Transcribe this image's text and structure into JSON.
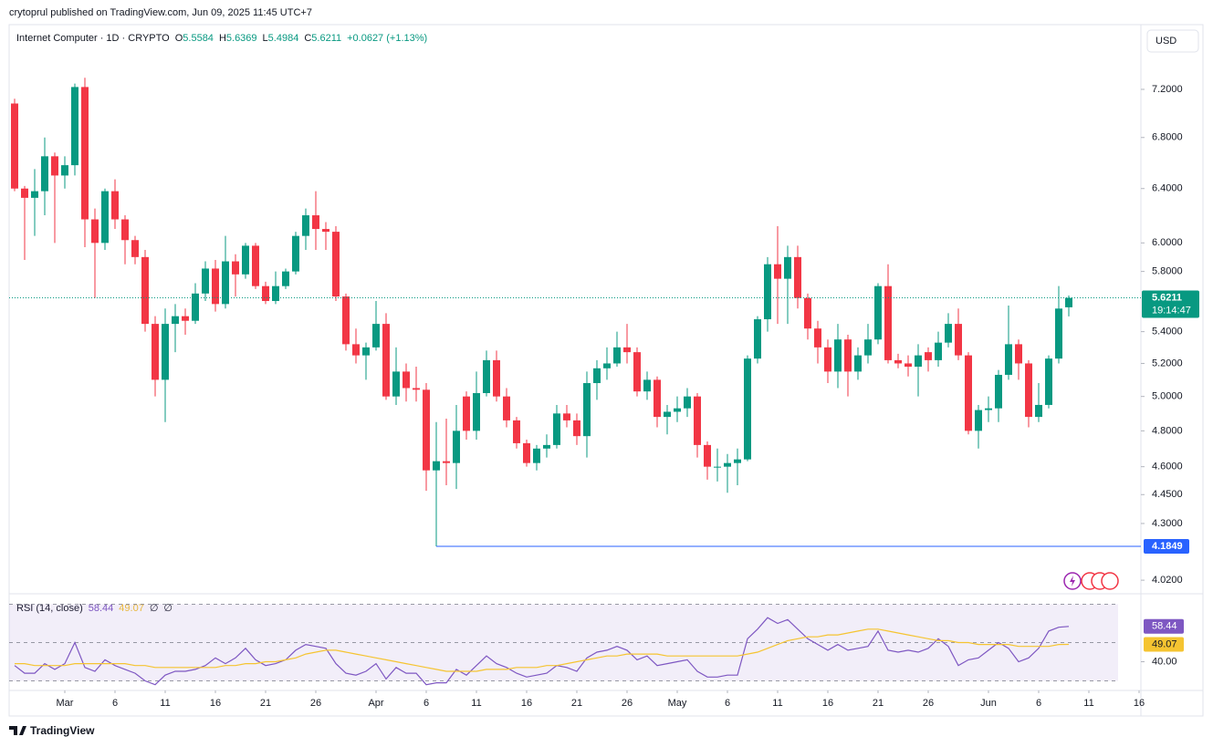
{
  "header": {
    "published": "crytoprul published on TradingView.com, Jun 09, 2025 11:45 UTC+7"
  },
  "footer": {
    "brand": "TradingView"
  },
  "chart_data": {
    "type": "candlestick",
    "title": "Internet Computer · 1D · CRYPTO",
    "ohlc_labels": [
      "O",
      "H",
      "L",
      "C"
    ],
    "change_label": "+0.0627 (+1.13%)",
    "currency": "USD",
    "countdown": "19:14:47",
    "up_color": "#089981",
    "down_color": "#f23645",
    "low_line_color": "#2962ff",
    "log_scale": true,
    "dates": [
      "2025-02-24",
      "2025-02-25",
      "2025-02-26",
      "2025-02-27",
      "2025-02-28",
      "2025-03-01",
      "2025-03-02",
      "2025-03-03",
      "2025-03-04",
      "2025-03-05",
      "2025-03-06",
      "2025-03-07",
      "2025-03-08",
      "2025-03-09",
      "2025-03-10",
      "2025-03-11",
      "2025-03-12",
      "2025-03-13",
      "2025-03-14",
      "2025-03-15",
      "2025-03-16",
      "2025-03-17",
      "2025-03-18",
      "2025-03-19",
      "2025-03-20",
      "2025-03-21",
      "2025-03-22",
      "2025-03-23",
      "2025-03-24",
      "2025-03-25",
      "2025-03-26",
      "2025-03-27",
      "2025-03-28",
      "2025-03-29",
      "2025-03-30",
      "2025-03-31",
      "2025-04-01",
      "2025-04-02",
      "2025-04-03",
      "2025-04-04",
      "2025-04-05",
      "2025-04-06",
      "2025-04-07",
      "2025-04-08",
      "2025-04-09",
      "2025-04-10",
      "2025-04-11",
      "2025-04-12",
      "2025-04-13",
      "2025-04-14",
      "2025-04-15",
      "2025-04-16",
      "2025-04-17",
      "2025-04-18",
      "2025-04-19",
      "2025-04-20",
      "2025-04-21",
      "2025-04-22",
      "2025-04-23",
      "2025-04-24",
      "2025-04-25",
      "2025-04-26",
      "2025-04-27",
      "2025-04-28",
      "2025-04-29",
      "2025-04-30",
      "2025-05-01",
      "2025-05-02",
      "2025-05-03",
      "2025-05-04",
      "2025-05-05",
      "2025-05-06",
      "2025-05-07",
      "2025-05-08",
      "2025-05-09",
      "2025-05-10",
      "2025-05-11",
      "2025-05-12",
      "2025-05-13",
      "2025-05-14",
      "2025-05-15",
      "2025-05-16",
      "2025-05-17",
      "2025-05-18",
      "2025-05-19",
      "2025-05-20",
      "2025-05-21",
      "2025-05-22",
      "2025-05-23",
      "2025-05-24",
      "2025-05-25",
      "2025-05-26",
      "2025-05-27",
      "2025-05-28",
      "2025-05-29",
      "2025-05-30",
      "2025-05-31",
      "2025-06-01",
      "2025-06-02",
      "2025-06-03",
      "2025-06-04",
      "2025-06-05",
      "2025-06-06",
      "2025-06-07",
      "2025-06-08",
      "2025-06-09"
    ],
    "open": [
      7.08,
      6.4,
      6.33,
      6.38,
      6.65,
      6.5,
      6.58,
      7.22,
      6.17,
      6.0,
      6.38,
      6.17,
      6.02,
      5.9,
      5.45,
      5.1,
      5.45,
      5.5,
      5.47,
      5.65,
      5.82,
      5.58,
      5.87,
      5.78,
      5.98,
      5.7,
      5.6,
      5.7,
      5.8,
      6.05,
      6.2,
      6.1,
      6.08,
      5.63,
      5.32,
      5.25,
      5.3,
      5.45,
      5.0,
      5.15,
      5.05,
      5.04,
      4.58,
      4.63,
      4.62,
      5.0,
      4.8,
      5.02,
      5.22,
      5.0,
      4.86,
      4.73,
      4.62,
      4.7,
      4.72,
      4.9,
      4.86,
      4.77,
      5.08,
      5.17,
      5.2,
      5.3,
      5.27,
      5.03,
      5.1,
      4.88,
      4.91,
      4.93,
      5.0,
      4.72,
      4.6,
      4.6,
      4.62,
      4.64,
      5.23,
      5.48,
      5.85,
      5.75,
      5.9,
      5.62,
      5.42,
      5.3,
      5.15,
      5.35,
      5.15,
      5.25,
      5.35,
      5.7,
      5.22,
      5.2,
      5.18,
      5.27,
      5.22,
      5.33,
      5.45,
      5.25,
      4.8,
      4.92,
      4.93,
      5.13,
      5.32,
      5.2,
      4.88,
      4.95,
      5.23,
      5.5584
    ],
    "high": [
      7.12,
      6.42,
      6.55,
      6.8,
      6.68,
      6.65,
      7.25,
      7.3,
      6.25,
      6.4,
      6.47,
      6.2,
      6.05,
      5.95,
      5.5,
      5.55,
      5.58,
      5.55,
      5.72,
      5.87,
      5.88,
      6.05,
      5.92,
      6.0,
      6.0,
      5.73,
      5.8,
      5.82,
      6.08,
      6.25,
      6.38,
      6.15,
      6.12,
      5.65,
      5.42,
      5.33,
      5.6,
      5.52,
      5.3,
      5.2,
      5.18,
      5.08,
      4.85,
      4.87,
      4.95,
      5.03,
      5.15,
      5.28,
      5.28,
      5.05,
      4.88,
      4.75,
      4.72,
      4.78,
      4.95,
      4.95,
      4.9,
      5.15,
      5.22,
      5.3,
      5.4,
      5.45,
      5.3,
      5.15,
      5.12,
      4.95,
      5.0,
      5.05,
      5.02,
      4.74,
      4.7,
      4.67,
      4.7,
      5.25,
      5.5,
      5.9,
      6.12,
      5.98,
      5.98,
      5.65,
      5.47,
      5.35,
      5.45,
      5.38,
      5.3,
      5.45,
      5.72,
      5.85,
      5.26,
      5.25,
      5.32,
      5.3,
      5.4,
      5.52,
      5.55,
      5.27,
      4.95,
      5.0,
      5.16,
      5.57,
      5.35,
      5.22,
      5.08,
      5.25,
      5.7,
      5.6369
    ],
    "low": [
      6.38,
      5.88,
      6.05,
      6.2,
      6.0,
      6.4,
      6.5,
      5.97,
      5.62,
      5.95,
      6.1,
      5.85,
      5.85,
      5.4,
      5.0,
      4.85,
      5.27,
      5.38,
      5.45,
      5.6,
      5.53,
      5.55,
      5.63,
      5.75,
      5.68,
      5.58,
      5.58,
      5.68,
      5.78,
      5.95,
      5.95,
      5.95,
      5.6,
      5.28,
      5.2,
      5.1,
      5.28,
      4.98,
      4.95,
      4.97,
      4.97,
      4.47,
      4.1849,
      4.5,
      4.48,
      4.75,
      4.75,
      5.0,
      4.97,
      4.82,
      4.7,
      4.6,
      4.58,
      4.65,
      4.7,
      4.82,
      4.72,
      4.65,
      4.98,
      5.1,
      5.18,
      5.2,
      5.0,
      4.98,
      4.82,
      4.78,
      4.85,
      4.88,
      4.65,
      4.53,
      4.52,
      4.46,
      4.5,
      4.63,
      5.2,
      5.4,
      5.45,
      5.45,
      5.55,
      5.35,
      5.2,
      5.08,
      5.05,
      5.0,
      5.1,
      5.2,
      5.32,
      5.2,
      5.17,
      5.12,
      5.0,
      5.15,
      5.18,
      5.3,
      5.22,
      4.78,
      4.7,
      4.85,
      4.85,
      5.1,
      5.1,
      4.82,
      4.85,
      4.93,
      5.2,
      5.4984
    ],
    "close": [
      6.4,
      6.33,
      6.38,
      6.65,
      6.5,
      6.58,
      7.22,
      6.17,
      6.0,
      6.38,
      6.17,
      6.02,
      5.9,
      5.45,
      5.1,
      5.45,
      5.5,
      5.47,
      5.65,
      5.82,
      5.58,
      5.87,
      5.78,
      5.98,
      5.7,
      5.6,
      5.7,
      5.8,
      6.05,
      6.2,
      6.1,
      6.08,
      5.63,
      5.32,
      5.25,
      5.3,
      5.45,
      5.0,
      5.15,
      5.05,
      5.04,
      4.58,
      4.63,
      4.62,
      4.8,
      4.8,
      5.02,
      5.22,
      5.0,
      4.86,
      4.73,
      4.62,
      4.7,
      4.72,
      4.9,
      4.86,
      4.77,
      5.08,
      5.17,
      5.2,
      5.3,
      5.27,
      5.03,
      5.1,
      4.88,
      4.91,
      4.93,
      5.0,
      4.72,
      4.6,
      4.6,
      4.62,
      4.64,
      5.23,
      5.48,
      5.85,
      5.75,
      5.9,
      5.62,
      5.42,
      5.3,
      5.15,
      5.35,
      5.15,
      5.25,
      5.35,
      5.7,
      5.22,
      5.2,
      5.18,
      5.25,
      5.22,
      5.33,
      5.45,
      5.25,
      4.8,
      4.92,
      4.93,
      5.13,
      5.32,
      5.2,
      4.88,
      4.95,
      5.23,
      5.55,
      5.6211
    ],
    "ylim": [
      3.96,
      7.75
    ],
    "yticks": [
      {
        "value": 7.2,
        "label": "7.2000"
      },
      {
        "value": 6.8,
        "label": "6.8000"
      },
      {
        "value": 6.4,
        "label": "6.4000"
      },
      {
        "value": 6.0,
        "label": "6.0000"
      },
      {
        "value": 5.8,
        "label": "5.8000"
      },
      {
        "value": 5.4,
        "label": "5.4000"
      },
      {
        "value": 5.2,
        "label": "5.2000"
      },
      {
        "value": 5.0,
        "label": "5.0000"
      },
      {
        "value": 4.8,
        "label": "4.8000"
      },
      {
        "value": 4.6,
        "label": "4.6000"
      },
      {
        "value": 4.45,
        "label": "4.4500"
      },
      {
        "value": 4.3,
        "label": "4.3000"
      },
      {
        "value": 4.02,
        "label": "4.0200"
      }
    ],
    "xticks": [
      {
        "value": "2025-03-01",
        "label": "Mar"
      },
      {
        "value": "2025-03-06",
        "label": "6"
      },
      {
        "value": "2025-03-11",
        "label": "11"
      },
      {
        "value": "2025-03-16",
        "label": "16"
      },
      {
        "value": "2025-03-21",
        "label": "21"
      },
      {
        "value": "2025-03-26",
        "label": "26"
      },
      {
        "value": "2025-04-01",
        "label": "Apr"
      },
      {
        "value": "2025-04-06",
        "label": "6"
      },
      {
        "value": "2025-04-11",
        "label": "11"
      },
      {
        "value": "2025-04-16",
        "label": "16"
      },
      {
        "value": "2025-04-21",
        "label": "21"
      },
      {
        "value": "2025-04-26",
        "label": "26"
      },
      {
        "value": "2025-05-01",
        "label": "May"
      },
      {
        "value": "2025-05-06",
        "label": "6"
      },
      {
        "value": "2025-05-11",
        "label": "11"
      },
      {
        "value": "2025-05-16",
        "label": "16"
      },
      {
        "value": "2025-05-21",
        "label": "21"
      },
      {
        "value": "2025-05-26",
        "label": "26"
      },
      {
        "value": "2025-06-01",
        "label": "Jun"
      },
      {
        "value": "2025-06-06",
        "label": "6"
      },
      {
        "value": "2025-06-11",
        "label": "11"
      },
      {
        "value": "2025-06-16",
        "label": "16"
      }
    ],
    "indicator": {
      "type": "line",
      "title": "RSI (14, close)",
      "extra_labels": [
        "∅",
        "∅"
      ],
      "ylim": [
        25,
        75
      ],
      "yticks": [
        {
          "value": 40,
          "label": "40.00"
        }
      ],
      "levels": [
        70,
        50,
        30
      ],
      "band_color": "#7e57c2",
      "series": [
        {
          "color": "#7e57c2",
          "values": [
            38,
            34,
            34,
            39,
            36,
            39,
            50,
            37,
            35,
            41,
            38,
            36,
            34,
            30,
            28,
            33,
            35,
            35,
            36,
            38,
            42,
            39,
            42,
            47,
            41,
            38,
            39,
            41,
            46,
            49,
            48,
            47,
            39,
            34,
            33,
            35,
            39,
            31,
            37,
            34,
            34,
            28,
            29,
            29,
            36,
            33,
            38,
            43,
            39,
            37,
            34,
            32,
            33,
            34,
            38,
            37,
            35,
            42,
            45,
            46,
            48,
            46,
            41,
            43,
            38,
            39,
            40,
            41,
            35,
            32,
            32,
            33,
            33,
            52,
            57,
            63,
            60,
            62,
            57,
            52,
            49,
            46,
            49,
            46,
            47,
            48,
            56,
            46,
            45,
            46,
            45,
            47,
            52,
            48,
            38,
            41,
            42,
            46,
            50,
            47,
            40,
            42,
            47,
            56,
            58,
            58.44
          ]
        },
        {
          "color": "#f5c431",
          "values": [
            39,
            39,
            38,
            38,
            38,
            38,
            39,
            39,
            39,
            39,
            39,
            39,
            38,
            38,
            37,
            37,
            37,
            37,
            37,
            37,
            37,
            38,
            38,
            39,
            39,
            40,
            40,
            41,
            42,
            44,
            45,
            46,
            46,
            45,
            44,
            43,
            42,
            41,
            40,
            39,
            38,
            37,
            36,
            35,
            35,
            35,
            35,
            36,
            36,
            36,
            37,
            37,
            37,
            38,
            38,
            39,
            40,
            41,
            42,
            43,
            43,
            44,
            44,
            44,
            44,
            43,
            43,
            43,
            43,
            43,
            43,
            43,
            43,
            44,
            45,
            47,
            49,
            51,
            52,
            53,
            53,
            54,
            54,
            55,
            56,
            57,
            57,
            56,
            55,
            54,
            53,
            52,
            51,
            51,
            50,
            50,
            49,
            49,
            49,
            49,
            48,
            48,
            48,
            48,
            49,
            49.07
          ]
        }
      ]
    }
  }
}
